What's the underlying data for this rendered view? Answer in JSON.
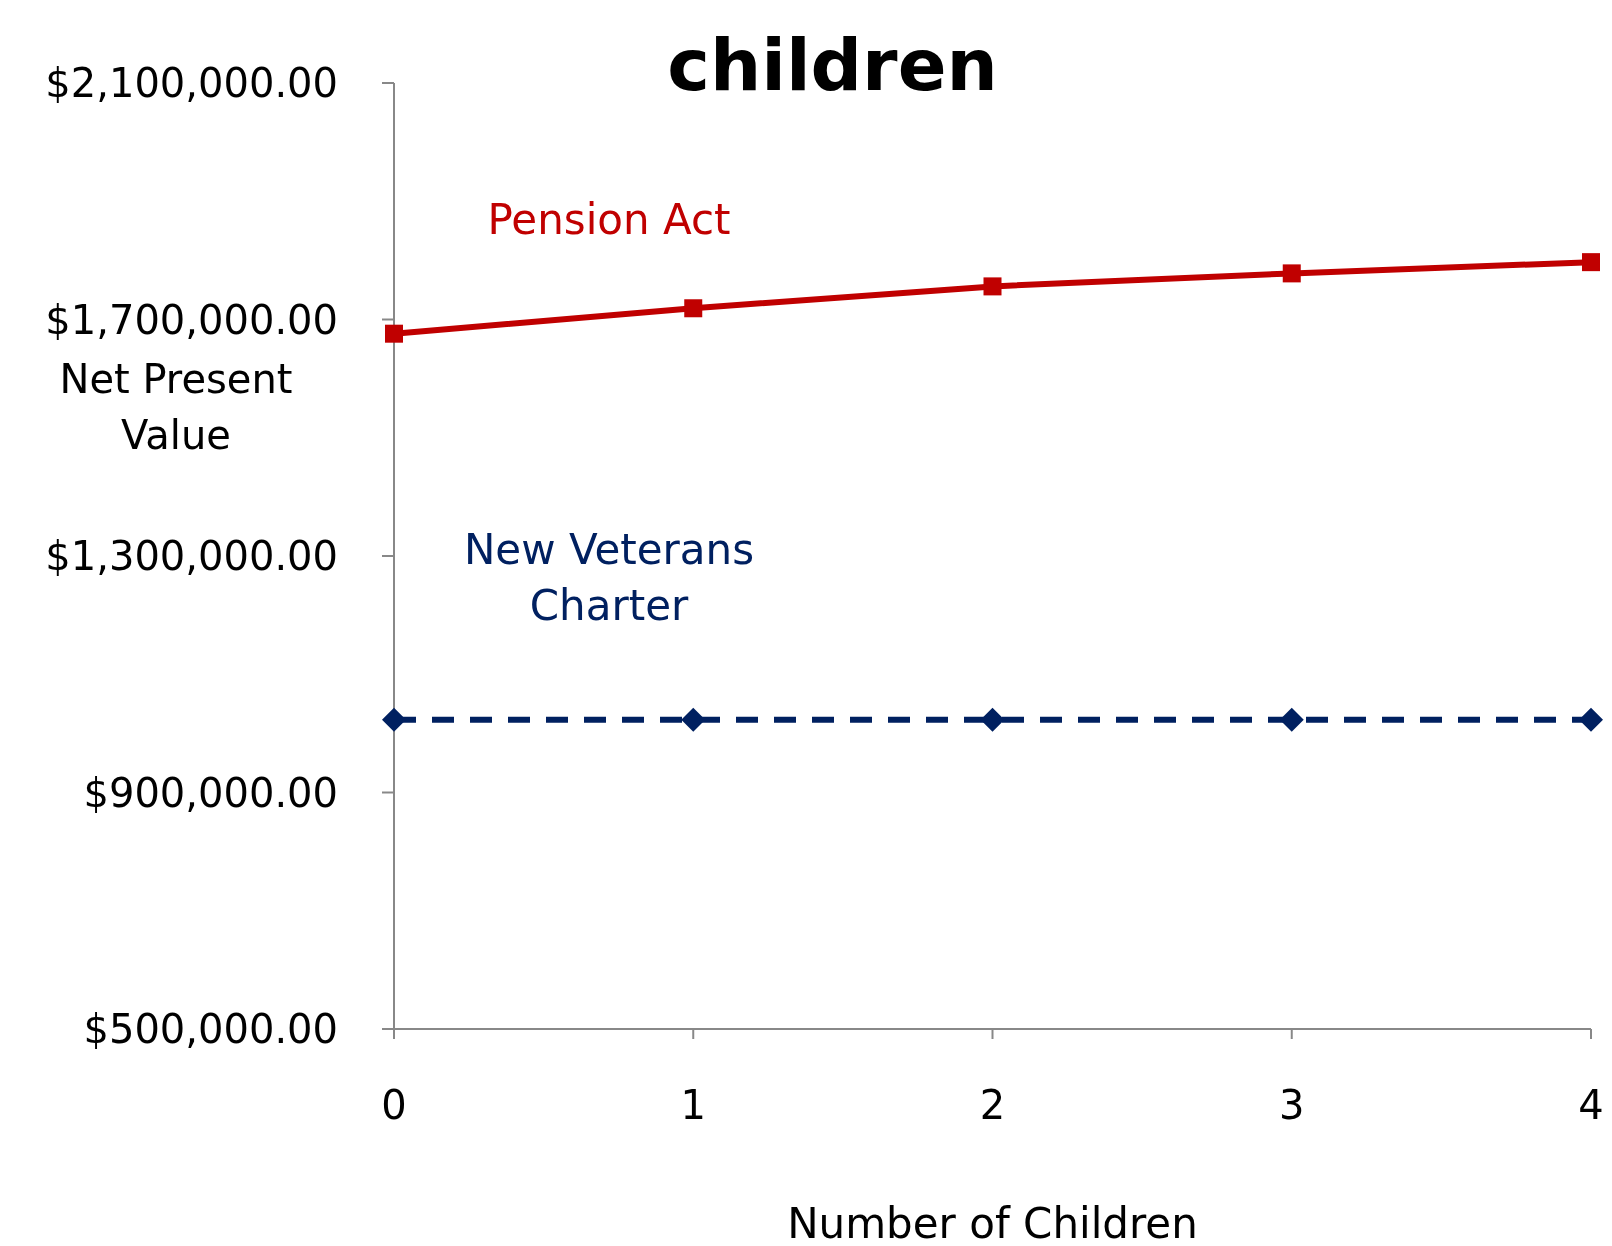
{
  "chart_data": {
    "type": "line",
    "title": "children",
    "xlabel": "Number of Children",
    "ylabel": "Net Present Value",
    "x": [
      0,
      1,
      2,
      3,
      4
    ],
    "xlim": [
      0,
      4
    ],
    "xticks": [
      0,
      1,
      2,
      3,
      4
    ],
    "ylim": [
      500000,
      2100000
    ],
    "yticks": [
      {
        "value": 500000,
        "label": "$500,000.00"
      },
      {
        "value": 900000,
        "label": "$900,000.00"
      },
      {
        "value": 1300000,
        "label": "$1,300,000.00"
      },
      {
        "value": 1700000,
        "label": "$1,700,000.00"
      },
      {
        "value": 2100000,
        "label": "$2,100,000.00"
      }
    ],
    "grid": false,
    "series": [
      {
        "name": "Pension Act",
        "color": "#c00000",
        "values": [
          1676000,
          1719000,
          1756000,
          1778000,
          1797000
        ],
        "marker": "square",
        "line_style": "solid"
      },
      {
        "name": "New Veterans Charter",
        "color": "#002060",
        "values": [
          1023000,
          1023000,
          1023000,
          1023000,
          1023000
        ],
        "marker": "diamond",
        "line_style": "dashed"
      }
    ]
  }
}
